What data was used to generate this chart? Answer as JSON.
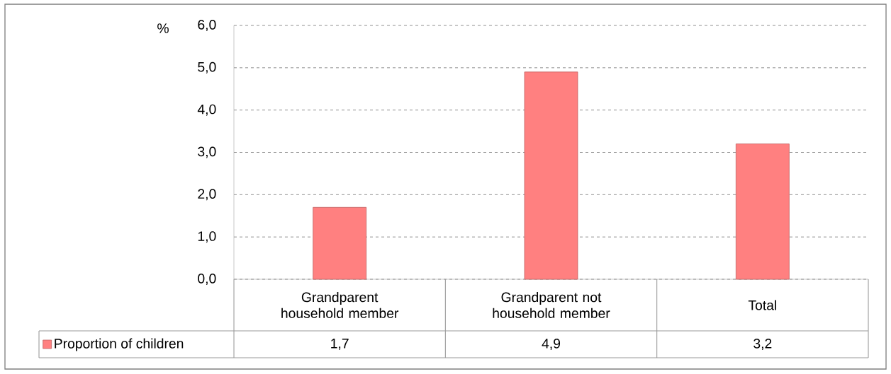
{
  "chart_data": {
    "type": "bar",
    "ylabel": "%",
    "categories": [
      "Grandparent household member",
      "Grandparent not household member",
      "Total"
    ],
    "series": [
      {
        "name": "Proportion of children",
        "color": "#ff8080",
        "values": [
          1.7,
          4.9,
          3.2
        ],
        "value_labels": [
          "1,7",
          "4,9",
          "3,2"
        ]
      }
    ],
    "ylim": [
      0,
      6
    ],
    "yticks": [
      {
        "value": 0,
        "label": "0,0"
      },
      {
        "value": 1,
        "label": "1,0"
      },
      {
        "value": 2,
        "label": "2,0"
      },
      {
        "value": 3,
        "label": "3,0"
      },
      {
        "value": 4,
        "label": "4,0"
      },
      {
        "value": 5,
        "label": "5,0"
      },
      {
        "value": 6,
        "label": "6,0"
      }
    ],
    "grid": "y",
    "legend": "bottom"
  }
}
